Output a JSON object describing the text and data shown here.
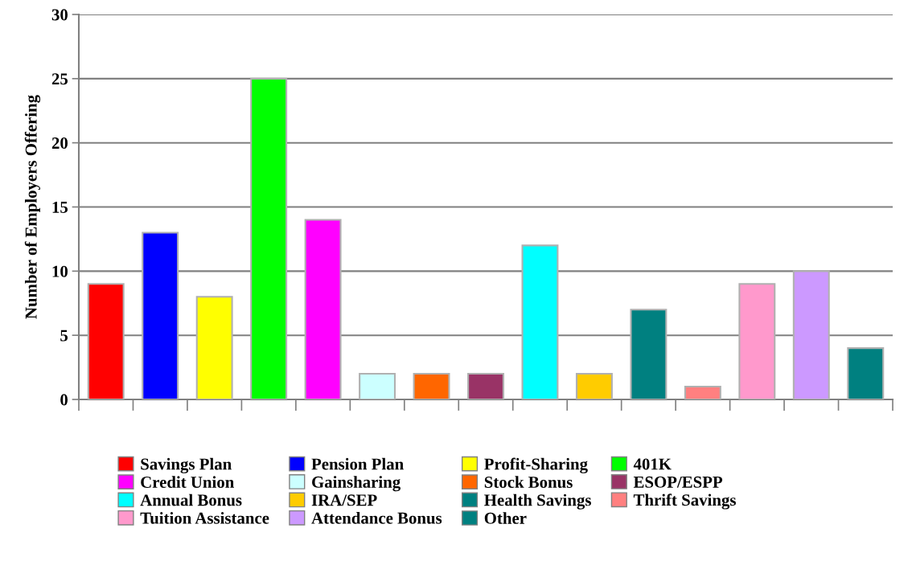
{
  "chart_data": {
    "type": "bar",
    "ylabel": "Number of Employers Offering",
    "categories": [
      null,
      null,
      null,
      null,
      null,
      null,
      null,
      null,
      null,
      null,
      null,
      null,
      null,
      null,
      null
    ],
    "series": [
      {
        "name": "Savings Plan",
        "color": "#ff0000",
        "values": [
          9,
          null,
          null,
          null,
          null,
          null,
          null,
          null,
          null,
          null,
          null,
          null,
          null,
          null,
          null
        ]
      },
      {
        "name": "Pension Plan",
        "color": "#0000ff",
        "values": [
          null,
          13,
          null,
          null,
          null,
          null,
          null,
          null,
          null,
          null,
          null,
          null,
          null,
          null,
          null
        ]
      },
      {
        "name": "Profit-Sharing",
        "color": "#ffff00",
        "values": [
          null,
          null,
          8,
          null,
          null,
          null,
          null,
          null,
          null,
          null,
          null,
          null,
          null,
          null,
          null
        ]
      },
      {
        "name": "401K",
        "color": "#00ff00",
        "values": [
          null,
          null,
          null,
          25,
          null,
          null,
          null,
          null,
          null,
          null,
          null,
          null,
          null,
          null,
          null
        ]
      },
      {
        "name": "Credit Union",
        "color": "#ff00ff",
        "values": [
          null,
          null,
          null,
          null,
          14,
          null,
          null,
          null,
          null,
          null,
          null,
          null,
          null,
          null,
          null
        ]
      },
      {
        "name": "Gainsharing",
        "color": "#ccffff",
        "values": [
          null,
          null,
          null,
          null,
          null,
          2,
          null,
          null,
          null,
          null,
          null,
          null,
          null,
          null,
          null
        ]
      },
      {
        "name": "Stock Bonus",
        "color": "#ff6600",
        "values": [
          null,
          null,
          null,
          null,
          null,
          null,
          2,
          null,
          null,
          null,
          null,
          null,
          null,
          null,
          null
        ]
      },
      {
        "name": "ESOP/ESPP",
        "color": "#993366",
        "values": [
          null,
          null,
          null,
          null,
          null,
          null,
          null,
          2,
          null,
          null,
          null,
          null,
          null,
          null,
          null
        ]
      },
      {
        "name": "Annual Bonus",
        "color": "#00ffff",
        "values": [
          null,
          null,
          null,
          null,
          null,
          null,
          null,
          null,
          12,
          null,
          null,
          null,
          null,
          null,
          null
        ]
      },
      {
        "name": "IRA/SEP",
        "color": "#ffcc00",
        "values": [
          null,
          null,
          null,
          null,
          null,
          null,
          null,
          null,
          null,
          2,
          null,
          null,
          null,
          null,
          null
        ]
      },
      {
        "name": "Health Savings",
        "color": "#008080",
        "values": [
          null,
          null,
          null,
          null,
          null,
          null,
          null,
          null,
          null,
          null,
          7,
          null,
          null,
          null,
          null
        ]
      },
      {
        "name": "Thrift Savings",
        "color": "#ff8080",
        "values": [
          null,
          null,
          null,
          null,
          null,
          null,
          null,
          null,
          null,
          null,
          null,
          1,
          null,
          null,
          null
        ]
      },
      {
        "name": "Tuition Assistance",
        "color": "#ff99cc",
        "values": [
          null,
          null,
          null,
          null,
          null,
          null,
          null,
          null,
          null,
          null,
          null,
          null,
          9,
          null,
          null
        ]
      },
      {
        "name": "Attendance Bonus",
        "color": "#cc99ff",
        "values": [
          null,
          null,
          null,
          null,
          null,
          null,
          null,
          null,
          null,
          null,
          null,
          null,
          null,
          10,
          null
        ]
      },
      {
        "name": "Other",
        "color": "#008080",
        "values": [
          null,
          null,
          null,
          null,
          null,
          null,
          null,
          null,
          null,
          null,
          null,
          null,
          null,
          null,
          4
        ]
      }
    ],
    "ylim": [
      0,
      30
    ],
    "yticks": [
      0,
      5,
      10,
      15,
      20,
      25,
      30
    ],
    "grid": "y",
    "legend": "bottom"
  }
}
